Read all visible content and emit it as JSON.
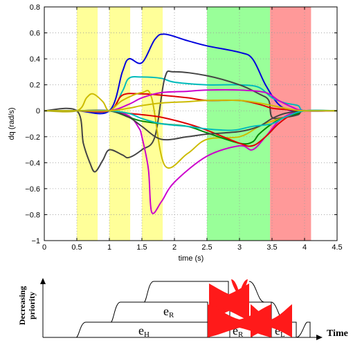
{
  "chart_data": {
    "type": "line",
    "xlabel": "time (s)",
    "ylabel": "dq (rad/s)",
    "xlim": [
      0,
      4.5
    ],
    "ylim": [
      -1,
      0.8
    ],
    "grid": true,
    "x_ticks": [
      "0",
      "0.5",
      "1",
      "1.5",
      "2",
      "2.5",
      "3",
      "3.5",
      "4",
      "4.5"
    ],
    "y_ticks": [
      "−1",
      "−0.8",
      "−0.6",
      "−0.4",
      "−0.2",
      "0",
      "0.2",
      "0.4",
      "0.6",
      "0.8"
    ],
    "shaded_regions": [
      {
        "x0": 0.5,
        "x1": 0.82,
        "color": "#ffff99"
      },
      {
        "x0": 1.0,
        "x1": 1.32,
        "color": "#ffff99"
      },
      {
        "x0": 1.5,
        "x1": 1.82,
        "color": "#ffff99"
      },
      {
        "x0": 2.5,
        "x1": 3.47,
        "color": "#99ff99"
      },
      {
        "x0": 3.47,
        "x1": 4.1,
        "color": "#ff9999"
      }
    ],
    "series": [
      {
        "color": "#0000dd",
        "x": [
          0,
          0.5,
          1.0,
          1.2,
          1.3,
          1.5,
          1.7,
          1.85,
          2.2,
          2.5,
          3.0,
          3.2,
          3.4,
          3.6,
          3.8,
          4.0,
          4.5
        ],
        "y": [
          0,
          0,
          0,
          0.3,
          0.4,
          0.37,
          0.55,
          0.59,
          0.54,
          0.5,
          0.45,
          0.4,
          0.2,
          0.05,
          0,
          0,
          0
        ]
      },
      {
        "color": "#00bbbb",
        "x": [
          0,
          0.5,
          1.0,
          1.2,
          1.3,
          1.5,
          1.8,
          2.0,
          2.5,
          3.0,
          3.3,
          3.5,
          3.7,
          3.9,
          4.0,
          4.5
        ],
        "y": [
          0,
          0,
          0,
          0.15,
          0.25,
          0.26,
          0.25,
          0.22,
          0.2,
          0.2,
          0.18,
          0.1,
          0.06,
          0.04,
          0,
          0
        ]
      },
      {
        "color": "#444444",
        "x": [
          0,
          0.5,
          0.6,
          0.7,
          0.78,
          0.9,
          1.0,
          1.2,
          1.3,
          1.5,
          1.7,
          1.85,
          2.0,
          2.5,
          3.0,
          3.3,
          3.45,
          3.5,
          3.7,
          3.9,
          4.0,
          4.5
        ],
        "y": [
          0,
          0,
          -0.25,
          -0.4,
          -0.47,
          -0.38,
          -0.3,
          -0.34,
          -0.36,
          -0.3,
          -0.2,
          0.25,
          0.3,
          0.27,
          0.2,
          0.13,
          0.08,
          -0.05,
          -0.05,
          -0.03,
          0,
          0
        ]
      },
      {
        "color": "#cc00cc",
        "x": [
          0,
          0.5,
          1.0,
          1.3,
          1.45,
          1.5,
          1.6,
          1.65,
          1.8,
          2.0,
          2.5,
          3.0,
          3.2,
          3.4,
          3.6,
          3.8,
          4.0,
          4.5
        ],
        "y": [
          0,
          0,
          0,
          -0.04,
          -0.13,
          -0.2,
          -0.45,
          -0.78,
          -0.7,
          -0.55,
          -0.35,
          -0.27,
          -0.3,
          -0.2,
          -0.08,
          -0.02,
          0,
          0
        ]
      },
      {
        "color": "#dd0000",
        "x": [
          0,
          0.5,
          1.0,
          1.2,
          1.5,
          1.8,
          2.2,
          2.5,
          3.0,
          3.3,
          3.5,
          3.7,
          3.9,
          4.0,
          4.5
        ],
        "y": [
          0,
          0,
          0,
          0.12,
          0.13,
          0.12,
          0.1,
          0.08,
          0.08,
          0.05,
          0.02,
          0.01,
          0,
          0,
          0
        ]
      },
      {
        "color": "#ccbb00",
        "x": [
          0,
          0.5,
          0.65,
          0.75,
          0.9,
          1.0,
          1.2,
          1.5,
          1.65,
          1.85,
          2.2,
          2.5,
          3.0,
          3.3,
          3.5,
          3.7,
          4.0,
          4.5
        ],
        "y": [
          0,
          0,
          0.1,
          0.13,
          0.07,
          0,
          0.08,
          0.14,
          0.1,
          -0.42,
          -0.33,
          -0.22,
          -0.2,
          -0.12,
          -0.08,
          -0.05,
          0,
          0
        ]
      },
      {
        "color": "#008800",
        "x": [
          0,
          0.5,
          1.0,
          1.3,
          1.5,
          1.8,
          2.2,
          2.5,
          3.0,
          3.2,
          3.3,
          3.5,
          3.7,
          3.9,
          4.0,
          4.5
        ],
        "y": [
          0,
          0,
          0,
          -0.05,
          -0.08,
          -0.1,
          -0.12,
          -0.17,
          -0.25,
          -0.24,
          -0.18,
          -0.1,
          -0.05,
          -0.02,
          0,
          0
        ]
      },
      {
        "color": "#dd0000",
        "x": [
          0,
          0.5,
          1.0,
          1.3,
          1.5,
          1.8,
          2.2,
          2.5,
          3.0,
          3.2,
          3.4,
          3.6,
          3.8,
          4.0,
          4.5
        ],
        "y": [
          0,
          0,
          0,
          -0.02,
          -0.03,
          -0.05,
          -0.1,
          -0.15,
          -0.25,
          -0.27,
          -0.2,
          -0.1,
          -0.03,
          0,
          0
        ]
      },
      {
        "color": "#cc00cc",
        "x": [
          0,
          0.5,
          1.0,
          1.3,
          1.5,
          1.8,
          2.2,
          2.5,
          3.0,
          3.4,
          3.6,
          3.8,
          4.0,
          4.5
        ],
        "y": [
          0,
          0,
          0,
          0.05,
          0.1,
          0.14,
          0.15,
          0.16,
          0.16,
          0.14,
          0.08,
          0.03,
          0,
          0
        ]
      },
      {
        "color": "#444444",
        "x": [
          0,
          0.5,
          1.0,
          1.3,
          1.5,
          1.8,
          2.2,
          2.5,
          3.0,
          3.3,
          3.5,
          3.7,
          4.0,
          4.5
        ],
        "y": [
          0,
          0,
          0,
          -0.05,
          -0.12,
          -0.22,
          -0.2,
          -0.18,
          -0.16,
          -0.12,
          -0.06,
          -0.02,
          0,
          0
        ]
      },
      {
        "color": "#00bbbb",
        "x": [
          0,
          0.5,
          1.0,
          1.3,
          1.5,
          1.8,
          2.2,
          2.5,
          2.9,
          3.2,
          3.5,
          3.7,
          4.0,
          4.5
        ],
        "y": [
          0,
          0,
          0,
          -0.02,
          -0.06,
          -0.1,
          -0.12,
          -0.14,
          -0.15,
          -0.12,
          -0.1,
          -0.05,
          0,
          0
        ]
      },
      {
        "color": "#ccbb00",
        "x": [
          0,
          0.5,
          1.0,
          1.3,
          1.5,
          1.8,
          2.2,
          2.5,
          3.0,
          3.3,
          3.6,
          3.8,
          4.0,
          4.5
        ],
        "y": [
          0,
          0,
          0,
          0.02,
          0.04,
          0.06,
          0.07,
          0.08,
          0.08,
          0.06,
          0.03,
          0.01,
          0,
          0
        ]
      }
    ]
  },
  "diagram": {
    "ylabel_lines": [
      "Decreasing",
      "priority"
    ],
    "time_label": "Time",
    "task_high": "e",
    "task_high_sub": "H",
    "task_mid": "e",
    "task_mid_sub": "R",
    "task_low": "e",
    "task_low_sub": "L",
    "switch_sub_r": "R",
    "switch_sub_l": "L"
  }
}
